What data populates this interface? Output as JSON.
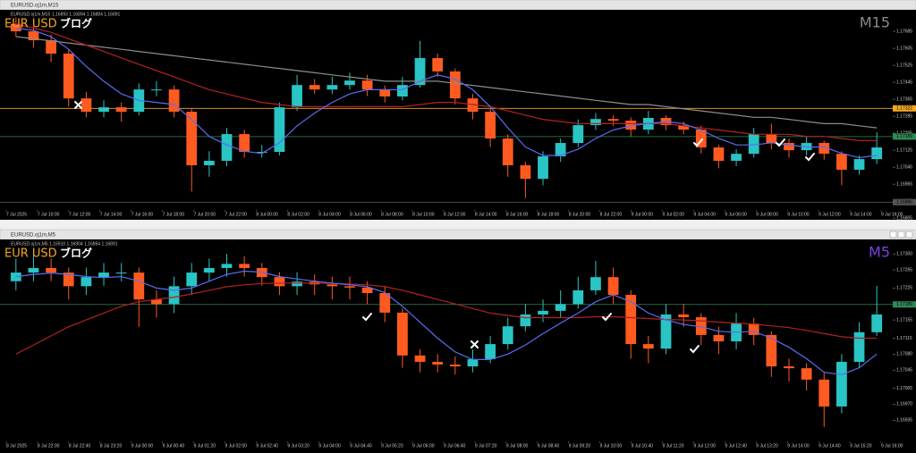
{
  "windows": [
    {
      "title": "EURUSD.oj1m,M15",
      "info": "EURUSD.oj1m,M15  1.16893 1.16894 1.16884 1.16891",
      "overlay": {
        "pair": "EUR USD",
        "blog": "ブログ",
        "timeframe": "M15",
        "pair_color": "#f5a623",
        "blog_color": "#ffffff",
        "timeframe_color": "#8a8a8a"
      },
      "ylim": [
        1.16856,
        1.17761
      ],
      "price_ticks": [
        1.17685,
        1.17605,
        1.17525,
        1.17445,
        1.17365,
        1.17285,
        1.17205,
        1.17125,
        1.17045,
        1.16965,
        1.16885,
        1.16805
      ],
      "price_lines": [
        {
          "value": 1.17322,
          "color": "#f5a623"
        },
        {
          "value": 1.17189,
          "color": "#2e8b57"
        },
        {
          "value": 1.1688,
          "label": "1.16880",
          "color": "#555555"
        }
      ],
      "time_labels": [
        "7 Jul 2025",
        "7 Jul 10:00",
        "7 Jul 12:00",
        "7 Jul 14:00",
        "7 Jul 16:00",
        "7 Jul 18:00",
        "7 Jul 20:00",
        "7 Jul 22:00",
        "8 Jul 00:00",
        "8 Jul 02:00",
        "8 Jul 04:00",
        "8 Jul 06:00",
        "8 Jul 08:00",
        "8 Jul 10:00",
        "8 Jul 12:00",
        "8 Jul 14:00",
        "8 Jul 16:00",
        "8 Jul 18:00",
        "8 Jul 20:00",
        "8 Jul 22:00",
        "9 Jul 00:00",
        "9 Jul 02:00",
        "9 Jul 04:00",
        "9 Jul 06:00",
        "9 Jul 08:00",
        "9 Jul 10:00",
        "9 Jul 12:00",
        "9 Jul 14:00",
        "9 Jul 16:00"
      ],
      "colors": {
        "up": "#29c4c4",
        "down": "#ff5a1f"
      },
      "candles": {
        "open": [
          1.1772,
          1.17685,
          1.17643,
          1.1758,
          1.17369,
          1.17306,
          1.17327,
          1.17306,
          1.17411,
          1.17411,
          1.17306,
          1.17054,
          1.17075,
          1.17201,
          1.17117,
          1.17117,
          1.17327,
          1.17432,
          1.17411,
          1.17432,
          1.17453,
          1.17411,
          1.17378,
          1.17432,
          1.17559,
          1.17496,
          1.17369,
          1.17306,
          1.1718,
          1.17054,
          1.1699,
          1.17096,
          1.17159,
          1.17243,
          1.17272,
          1.17264,
          1.17222,
          1.17277,
          1.17243,
          1.17222,
          1.17138,
          1.17075,
          1.17108,
          1.17201,
          1.17159,
          1.17125,
          1.17159,
          1.17108,
          1.17033,
          1.17083
        ],
        "high": [
          1.1775,
          1.1771,
          1.1767,
          1.176,
          1.174,
          1.1736,
          1.1735,
          1.1744,
          1.1745,
          1.1743,
          1.1732,
          1.1712,
          1.1723,
          1.1722,
          1.1715,
          1.1735,
          1.1748,
          1.1746,
          1.1747,
          1.1749,
          1.1748,
          1.1743,
          1.1747,
          1.1764,
          1.1758,
          1.1751,
          1.1739,
          1.1732,
          1.172,
          1.1707,
          1.1712,
          1.1718,
          1.1727,
          1.173,
          1.1729,
          1.1728,
          1.1731,
          1.1729,
          1.1726,
          1.1724,
          1.1715,
          1.1713,
          1.1723,
          1.1725,
          1.1718,
          1.1719,
          1.1717,
          1.1712,
          1.171,
          1.1721
        ],
        "low": [
          1.1766,
          1.1761,
          1.1754,
          1.1733,
          1.1728,
          1.1728,
          1.1726,
          1.1729,
          1.1738,
          1.1728,
          1.1693,
          1.17,
          1.1705,
          1.1709,
          1.1709,
          1.171,
          1.1731,
          1.1739,
          1.1739,
          1.1741,
          1.1738,
          1.1735,
          1.1736,
          1.1742,
          1.1747,
          1.1734,
          1.1727,
          1.1714,
          1.17,
          1.169,
          1.1696,
          1.1707,
          1.1714,
          1.1722,
          1.1724,
          1.1719,
          1.172,
          1.1722,
          1.172,
          1.1711,
          1.1704,
          1.1705,
          1.1709,
          1.1713,
          1.1709,
          1.171,
          1.1708,
          1.1696,
          1.1701,
          1.1706
        ],
        "close": [
          1.17685,
          1.17643,
          1.1758,
          1.17369,
          1.17306,
          1.17327,
          1.17306,
          1.17411,
          1.17411,
          1.17306,
          1.17054,
          1.17075,
          1.17201,
          1.17117,
          1.17117,
          1.17327,
          1.17432,
          1.17411,
          1.17432,
          1.17453,
          1.17411,
          1.17378,
          1.17432,
          1.17559,
          1.17496,
          1.17369,
          1.17306,
          1.1718,
          1.17054,
          1.1699,
          1.17096,
          1.17159,
          1.17243,
          1.17272,
          1.17264,
          1.17222,
          1.17277,
          1.17243,
          1.17222,
          1.17138,
          1.17075,
          1.17108,
          1.17201,
          1.17159,
          1.17125,
          1.17159,
          1.17108,
          1.17033,
          1.17083,
          1.17138
        ]
      },
      "moving_averages": [
        {
          "color": "#8c8c8c",
          "values": [
            1.1766,
            1.1765,
            1.1764,
            1.1763,
            1.1762,
            1.1761,
            1.176,
            1.1759,
            1.1758,
            1.1757,
            1.1756,
            1.1755,
            1.1754,
            1.1753,
            1.1752,
            1.1751,
            1.175,
            1.1749,
            1.1748,
            1.1747,
            1.1746,
            1.1745,
            1.1745,
            1.1745,
            1.1745,
            1.1744,
            1.1743,
            1.1742,
            1.1741,
            1.174,
            1.1739,
            1.1738,
            1.1737,
            1.1736,
            1.1735,
            1.1734,
            1.1734,
            1.1733,
            1.1732,
            1.1731,
            1.173,
            1.1729,
            1.1728,
            1.1728,
            1.1727,
            1.1726,
            1.1725,
            1.1725,
            1.1724,
            1.1723
          ]
        },
        {
          "color": "#b22222",
          "values": [
            1.1772,
            1.177,
            1.1768,
            1.1765,
            1.1762,
            1.1759,
            1.1756,
            1.1753,
            1.175,
            1.1747,
            1.1744,
            1.1741,
            1.1739,
            1.1737,
            1.1735,
            1.1734,
            1.1733,
            1.1733,
            1.1733,
            1.1733,
            1.1733,
            1.1733,
            1.1733,
            1.1734,
            1.1735,
            1.1735,
            1.1734,
            1.1733,
            1.1731,
            1.1729,
            1.1727,
            1.1726,
            1.1725,
            1.1725,
            1.1725,
            1.1725,
            1.1725,
            1.1725,
            1.1724,
            1.1723,
            1.1722,
            1.1721,
            1.172,
            1.172,
            1.172,
            1.1719,
            1.1719,
            1.1718,
            1.1717,
            1.1717
          ]
        },
        {
          "color": "#5a6cf0",
          "values": [
            1.177,
            1.1769,
            1.1766,
            1.176,
            1.1752,
            1.1745,
            1.1739,
            1.1736,
            1.1735,
            1.1734,
            1.1727,
            1.1719,
            1.1715,
            1.1712,
            1.1711,
            1.1716,
            1.1724,
            1.173,
            1.1735,
            1.1739,
            1.1741,
            1.1741,
            1.1741,
            1.1745,
            1.1748,
            1.1746,
            1.1741,
            1.1733,
            1.1723,
            1.1714,
            1.171,
            1.171,
            1.1713,
            1.1718,
            1.1722,
            1.1724,
            1.1725,
            1.1726,
            1.1725,
            1.1722,
            1.1718,
            1.1715,
            1.1715,
            1.1716,
            1.1715,
            1.1714,
            1.1714,
            1.1711,
            1.1709,
            1.171
          ]
        }
      ]
    },
    {
      "title": "EURUSD.oj1m,M5",
      "info": "EURUSD.oj1m,M5  1.16910 1.16904 1.16894 1.16891",
      "overlay": {
        "pair": "EUR USD",
        "blog": "ブログ",
        "timeframe": "M5",
        "pair_color": "#f5a623",
        "blog_color": "#ffffff",
        "timeframe_color": "#7b3fe4"
      },
      "ylim": [
        1.16908,
        1.17316
      ],
      "price_ticks": [
        {
          "value": 1.173,
          "label": "1.17300"
        },
        1.17265,
        1.17225,
        {
          "value": 1.1719,
          "label": "1.17190"
        },
        1.17155,
        1.17115,
        {
          "value": 1.1708,
          "label": "1.17080"
        },
        1.17045,
        1.17005,
        {
          "value": 1.1697,
          "label": "1.16970"
        },
        1.16935
      ],
      "price_lines": [
        {
          "value": 1.17189,
          "color": "#2e8b57"
        }
      ],
      "time_labels": [
        "8 Jul 2025",
        "8 Jul 22:00",
        "8 Jul 22:40",
        "8 Jul 23:20",
        "9 Jul 00:00",
        "9 Jul 00:40",
        "9 Jul 01:20",
        "9 Jul 02:00",
        "9 Jul 02:40",
        "9 Jul 03:20",
        "9 Jul 04:00",
        "9 Jul 04:40",
        "9 Jul 05:20",
        "9 Jul 06:00",
        "9 Jul 06:40",
        "9 Jul 07:20",
        "9 Jul 08:00",
        "9 Jul 08:40",
        "9 Jul 09:20",
        "9 Jul 10:00",
        "9 Jul 10:40",
        "9 Jul 11:20",
        "9 Jul 12:00",
        "9 Jul 12:40",
        "9 Jul 13:20",
        "9 Jul 14:00",
        "9 Jul 14:40",
        "9 Jul 15:20",
        "9 Jul 16:00"
      ],
      "colors": {
        "up": "#29c4c4",
        "down": "#ff5a1f"
      },
      "candles": {
        "open": [
          1.1724,
          1.17259,
          1.17269,
          1.17259,
          1.17229,
          1.17249,
          1.17259,
          1.17259,
          1.172,
          1.1719,
          1.17229,
          1.17259,
          1.17269,
          1.17278,
          1.17269,
          1.17249,
          1.17229,
          1.17239,
          1.17233,
          1.17229,
          1.17226,
          1.17214,
          1.17171,
          1.17077,
          1.17063,
          1.17057,
          1.17053,
          1.17069,
          1.17102,
          1.17141,
          1.17167,
          1.17175,
          1.1719,
          1.1722,
          1.17249,
          1.1721,
          1.17102,
          1.17092,
          1.17167,
          1.17161,
          1.17122,
          1.17108,
          1.17147,
          1.17122,
          1.17053,
          1.17049,
          1.17024,
          1.16965,
          1.17063,
          1.17128
        ],
        "high": [
          1.1729,
          1.173,
          1.1729,
          1.1727,
          1.1727,
          1.1728,
          1.1728,
          1.1727,
          1.1722,
          1.1725,
          1.1728,
          1.1729,
          1.173,
          1.17295,
          1.1728,
          1.1726,
          1.1726,
          1.17255,
          1.1725,
          1.1725,
          1.1724,
          1.1723,
          1.1718,
          1.1709,
          1.1708,
          1.17075,
          1.1709,
          1.1712,
          1.1716,
          1.1719,
          1.172,
          1.1722,
          1.1725,
          1.17285,
          1.1727,
          1.1722,
          1.1712,
          1.1719,
          1.1719,
          1.1717,
          1.1714,
          1.1717,
          1.1716,
          1.1713,
          1.1707,
          1.1706,
          1.1704,
          1.1708,
          1.1715,
          1.1723
        ],
        "low": [
          1.1722,
          1.1724,
          1.1724,
          1.172,
          1.1721,
          1.1723,
          1.1724,
          1.1714,
          1.1716,
          1.1717,
          1.1721,
          1.1724,
          1.1725,
          1.1725,
          1.1723,
          1.1721,
          1.1721,
          1.1721,
          1.172,
          1.172,
          1.1719,
          1.1715,
          1.1705,
          1.1704,
          1.1704,
          1.17035,
          1.1704,
          1.1706,
          1.1709,
          1.1713,
          1.1715,
          1.1716,
          1.1718,
          1.1721,
          1.1719,
          1.1707,
          1.1706,
          1.1708,
          1.1714,
          1.171,
          1.1708,
          1.1709,
          1.171,
          1.1703,
          1.1702,
          1.17,
          1.1692,
          1.1695,
          1.1705,
          1.1712
        ],
        "close": [
          1.17259,
          1.17269,
          1.17259,
          1.17229,
          1.17249,
          1.17259,
          1.17259,
          1.172,
          1.1719,
          1.17229,
          1.17259,
          1.17269,
          1.17278,
          1.17269,
          1.17249,
          1.17229,
          1.17239,
          1.17233,
          1.17229,
          1.17226,
          1.17214,
          1.17171,
          1.17077,
          1.17063,
          1.17057,
          1.17053,
          1.17069,
          1.17102,
          1.17141,
          1.17167,
          1.17175,
          1.1719,
          1.1722,
          1.17249,
          1.1721,
          1.17102,
          1.17092,
          1.17167,
          1.17161,
          1.17122,
          1.17108,
          1.17147,
          1.17122,
          1.17053,
          1.17049,
          1.17024,
          1.16965,
          1.17063,
          1.17128,
          1.17167
        ]
      },
      "moving_averages": [
        {
          "color": "#b22222",
          "values": [
            1.1708,
            1.171,
            1.1712,
            1.1714,
            1.17155,
            1.1717,
            1.17185,
            1.17195,
            1.172,
            1.17205,
            1.17212,
            1.1722,
            1.17228,
            1.17232,
            1.17235,
            1.17236,
            1.17236,
            1.17236,
            1.17235,
            1.17234,
            1.17232,
            1.17228,
            1.1722,
            1.1721,
            1.172,
            1.1719,
            1.1718,
            1.1717,
            1.17165,
            1.1716,
            1.1716,
            1.1716,
            1.1716,
            1.17162,
            1.17162,
            1.1716,
            1.17158,
            1.17156,
            1.17155,
            1.17153,
            1.1715,
            1.17148,
            1.17146,
            1.17142,
            1.17138,
            1.17132,
            1.17125,
            1.17118,
            1.17115,
            1.17115
          ]
        },
        {
          "color": "#5a6cf0",
          "values": [
            1.1725,
            1.17255,
            1.17258,
            1.17255,
            1.1725,
            1.17248,
            1.1725,
            1.1724,
            1.17225,
            1.1722,
            1.17225,
            1.1724,
            1.17255,
            1.17262,
            1.1726,
            1.1725,
            1.17245,
            1.1724,
            1.17236,
            1.17232,
            1.17228,
            1.17215,
            1.17185,
            1.1715,
            1.17115,
            1.17085,
            1.17068,
            1.17068,
            1.1708,
            1.171,
            1.17125,
            1.17148,
            1.1717,
            1.17195,
            1.1721,
            1.17195,
            1.1717,
            1.17155,
            1.17145,
            1.1714,
            1.1713,
            1.17128,
            1.1713,
            1.17115,
            1.17095,
            1.1707,
            1.1704,
            1.17035,
            1.1705,
            1.1708
          ]
        }
      ]
    }
  ]
}
